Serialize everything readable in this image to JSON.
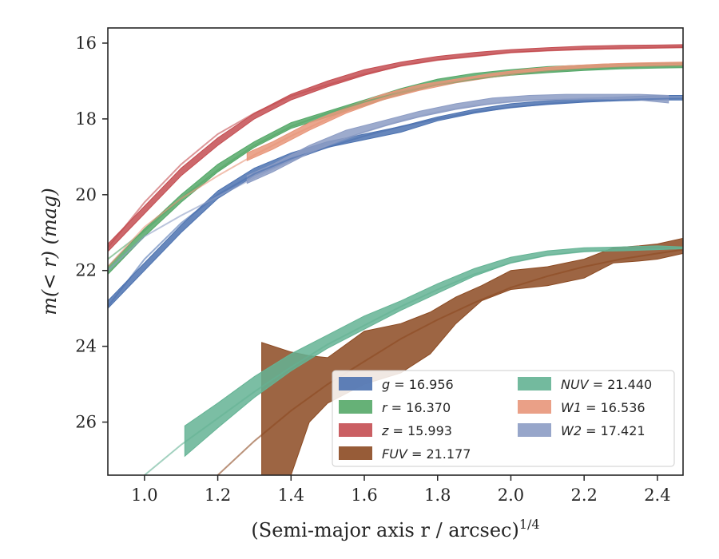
{
  "chart_data": {
    "type": "area",
    "xlabel": "(Semi-major axis r / arcsec)",
    "xlabel_superscript": "1/4",
    "ylabel": "m(< r) (mag)",
    "xlim": [
      0.9,
      2.47
    ],
    "ylim": [
      27.4,
      15.6
    ],
    "y_inverted": true,
    "grid": false,
    "legend_position": "lower-right",
    "x_ticks": [
      "1.0",
      "1.2",
      "1.4",
      "1.6",
      "1.8",
      "2.0",
      "2.2",
      "2.4"
    ],
    "y_ticks": [
      "16",
      "18",
      "20",
      "22",
      "24",
      "26"
    ],
    "series": [
      {
        "id": "g",
        "band": "g",
        "value": "16.956",
        "color": "#4c72b0",
        "data": [
          [
            0.9,
            23.0,
            22.8
          ],
          [
            1.0,
            22.0,
            21.8
          ],
          [
            1.1,
            21.0,
            20.8
          ],
          [
            1.2,
            20.1,
            19.9
          ],
          [
            1.3,
            19.5,
            19.3
          ],
          [
            1.4,
            19.1,
            18.9
          ],
          [
            1.5,
            18.75,
            18.6
          ],
          [
            1.6,
            18.55,
            18.4
          ],
          [
            1.7,
            18.35,
            18.2
          ],
          [
            1.8,
            18.05,
            17.95
          ],
          [
            1.9,
            17.85,
            17.75
          ],
          [
            2.0,
            17.7,
            17.6
          ],
          [
            2.1,
            17.62,
            17.52
          ],
          [
            2.2,
            17.56,
            17.46
          ],
          [
            2.3,
            17.52,
            17.42
          ],
          [
            2.4,
            17.5,
            17.38
          ],
          [
            2.47,
            17.5,
            17.38
          ]
        ]
      },
      {
        "id": "r",
        "band": "r",
        "value": "16.370",
        "color": "#55a868",
        "data": [
          [
            0.9,
            22.1,
            21.9
          ],
          [
            1.0,
            21.1,
            20.9
          ],
          [
            1.1,
            20.2,
            20.0
          ],
          [
            1.2,
            19.4,
            19.2
          ],
          [
            1.3,
            18.75,
            18.6
          ],
          [
            1.4,
            18.25,
            18.1
          ],
          [
            1.5,
            17.95,
            17.8
          ],
          [
            1.6,
            17.65,
            17.5
          ],
          [
            1.7,
            17.35,
            17.2
          ],
          [
            1.8,
            17.1,
            16.95
          ],
          [
            1.9,
            16.95,
            16.8
          ],
          [
            2.0,
            16.85,
            16.7
          ],
          [
            2.1,
            16.78,
            16.62
          ],
          [
            2.2,
            16.72,
            16.58
          ],
          [
            2.3,
            16.68,
            16.55
          ],
          [
            2.4,
            16.66,
            16.53
          ],
          [
            2.47,
            16.65,
            16.52
          ]
        ]
      },
      {
        "id": "z",
        "band": "z",
        "value": "15.993",
        "color": "#c44e52",
        "data": [
          [
            0.9,
            21.5,
            21.3
          ],
          [
            1.0,
            20.5,
            20.3
          ],
          [
            1.1,
            19.5,
            19.3
          ],
          [
            1.2,
            18.7,
            18.5
          ],
          [
            1.3,
            18.0,
            17.85
          ],
          [
            1.4,
            17.5,
            17.35
          ],
          [
            1.5,
            17.15,
            17.0
          ],
          [
            1.6,
            16.85,
            16.7
          ],
          [
            1.7,
            16.6,
            16.5
          ],
          [
            1.8,
            16.45,
            16.35
          ],
          [
            1.9,
            16.35,
            16.25
          ],
          [
            2.0,
            16.25,
            16.17
          ],
          [
            2.1,
            16.2,
            16.12
          ],
          [
            2.2,
            16.17,
            16.08
          ],
          [
            2.3,
            16.15,
            16.06
          ],
          [
            2.4,
            16.13,
            16.05
          ],
          [
            2.47,
            16.12,
            16.04
          ]
        ]
      },
      {
        "id": "FUV",
        "band": "FUV",
        "value": "21.177",
        "color": "#8c4a22",
        "data": [
          [
            1.32,
            27.4,
            23.9
          ],
          [
            1.4,
            27.4,
            24.15
          ],
          [
            1.45,
            26.0,
            24.25
          ],
          [
            1.5,
            25.5,
            24.3
          ],
          [
            1.6,
            25.0,
            23.6
          ],
          [
            1.7,
            24.7,
            23.4
          ],
          [
            1.78,
            24.2,
            23.1
          ],
          [
            1.85,
            23.4,
            22.7
          ],
          [
            1.92,
            22.8,
            22.4
          ],
          [
            2.0,
            22.5,
            22.0
          ],
          [
            2.1,
            22.4,
            21.9
          ],
          [
            2.2,
            22.2,
            21.7
          ],
          [
            2.28,
            21.8,
            21.4
          ],
          [
            2.35,
            21.75,
            21.35
          ],
          [
            2.4,
            21.7,
            21.3
          ],
          [
            2.47,
            21.55,
            21.15
          ]
        ]
      },
      {
        "id": "NUV",
        "band": "NUV",
        "value": "21.440",
        "color": "#64b394",
        "data": [
          [
            1.11,
            26.9,
            26.1
          ],
          [
            1.2,
            26.15,
            25.5
          ],
          [
            1.3,
            25.35,
            24.8
          ],
          [
            1.4,
            24.65,
            24.2
          ],
          [
            1.5,
            24.05,
            23.7
          ],
          [
            1.6,
            23.55,
            23.2
          ],
          [
            1.7,
            23.05,
            22.8
          ],
          [
            1.8,
            22.6,
            22.35
          ],
          [
            1.9,
            22.15,
            21.95
          ],
          [
            2.0,
            21.8,
            21.65
          ],
          [
            2.1,
            21.6,
            21.48
          ],
          [
            2.2,
            21.5,
            21.4
          ],
          [
            2.3,
            21.48,
            21.38
          ],
          [
            2.4,
            21.45,
            21.35
          ],
          [
            2.47,
            21.42,
            21.38
          ]
        ]
      },
      {
        "id": "W1",
        "band": "W1",
        "value": "16.536",
        "color": "#e8967a",
        "data": [
          [
            1.28,
            19.1,
            18.9
          ],
          [
            1.35,
            18.8,
            18.6
          ],
          [
            1.45,
            18.3,
            18.1
          ],
          [
            1.55,
            17.85,
            17.7
          ],
          [
            1.65,
            17.5,
            17.35
          ],
          [
            1.75,
            17.25,
            17.1
          ],
          [
            1.85,
            17.05,
            16.95
          ],
          [
            1.95,
            16.9,
            16.8
          ],
          [
            2.05,
            16.78,
            16.68
          ],
          [
            2.15,
            16.7,
            16.6
          ],
          [
            2.25,
            16.65,
            16.55
          ],
          [
            2.35,
            16.62,
            16.52
          ],
          [
            2.47,
            16.6,
            16.5
          ]
        ]
      },
      {
        "id": "W2",
        "band": "W2",
        "value": "17.421",
        "color": "#8c9cc4",
        "data": [
          [
            1.28,
            19.7,
            19.5
          ],
          [
            1.35,
            19.4,
            19.2
          ],
          [
            1.45,
            18.9,
            18.7
          ],
          [
            1.55,
            18.5,
            18.3
          ],
          [
            1.65,
            18.2,
            18.05
          ],
          [
            1.75,
            17.95,
            17.8
          ],
          [
            1.85,
            17.75,
            17.6
          ],
          [
            1.95,
            17.6,
            17.45
          ],
          [
            2.05,
            17.5,
            17.38
          ],
          [
            2.15,
            17.48,
            17.35
          ],
          [
            2.25,
            17.47,
            17.35
          ],
          [
            2.35,
            17.5,
            17.35
          ],
          [
            2.43,
            17.58,
            17.38
          ]
        ]
      }
    ],
    "model_lines": [
      {
        "id": "g",
        "color": "#4c72b0",
        "points": [
          [
            0.9,
            22.95
          ],
          [
            1.0,
            21.7
          ],
          [
            1.1,
            20.75
          ],
          [
            1.2,
            20.0
          ],
          [
            1.3,
            19.45
          ],
          [
            1.4,
            19.05
          ],
          [
            1.5,
            18.75
          ],
          [
            1.6,
            18.45
          ],
          [
            1.7,
            18.2
          ],
          [
            1.8,
            18.0
          ],
          [
            1.9,
            17.82
          ],
          [
            2.0,
            17.7
          ],
          [
            2.1,
            17.6
          ],
          [
            2.2,
            17.54
          ],
          [
            2.3,
            17.5
          ],
          [
            2.47,
            17.45
          ]
        ]
      },
      {
        "id": "r",
        "color": "#55a868",
        "points": [
          [
            0.9,
            21.7
          ],
          [
            1.0,
            20.95
          ],
          [
            1.1,
            20.1
          ],
          [
            1.2,
            19.35
          ],
          [
            1.3,
            18.7
          ],
          [
            1.4,
            18.2
          ],
          [
            1.5,
            17.85
          ],
          [
            1.6,
            17.55
          ],
          [
            1.7,
            17.3
          ],
          [
            1.8,
            17.1
          ],
          [
            1.9,
            16.95
          ],
          [
            2.0,
            16.82
          ],
          [
            2.1,
            16.74
          ],
          [
            2.2,
            16.68
          ],
          [
            2.3,
            16.64
          ],
          [
            2.47,
            16.6
          ]
        ]
      },
      {
        "id": "z",
        "color": "#c44e52",
        "points": [
          [
            0.9,
            21.4
          ],
          [
            1.0,
            20.2
          ],
          [
            1.1,
            19.2
          ],
          [
            1.2,
            18.4
          ],
          [
            1.3,
            17.85
          ],
          [
            1.4,
            17.4
          ],
          [
            1.5,
            17.1
          ],
          [
            1.6,
            16.82
          ],
          [
            1.7,
            16.6
          ],
          [
            1.8,
            16.45
          ],
          [
            1.9,
            16.35
          ],
          [
            2.0,
            16.25
          ],
          [
            2.1,
            16.2
          ],
          [
            2.2,
            16.16
          ],
          [
            2.3,
            16.14
          ],
          [
            2.47,
            16.1
          ]
        ]
      },
      {
        "id": "FUV",
        "color": "#8c4a22",
        "points": [
          [
            1.2,
            27.4
          ],
          [
            1.3,
            26.5
          ],
          [
            1.4,
            25.7
          ],
          [
            1.5,
            25.0
          ],
          [
            1.6,
            24.4
          ],
          [
            1.7,
            23.8
          ],
          [
            1.8,
            23.3
          ],
          [
            1.9,
            22.85
          ],
          [
            2.0,
            22.45
          ],
          [
            2.1,
            22.15
          ],
          [
            2.2,
            21.9
          ],
          [
            2.3,
            21.7
          ],
          [
            2.4,
            21.55
          ],
          [
            2.47,
            21.45
          ]
        ]
      },
      {
        "id": "NUV",
        "color": "#64b394",
        "points": [
          [
            1.0,
            27.4
          ],
          [
            1.1,
            26.6
          ],
          [
            1.2,
            25.9
          ],
          [
            1.3,
            25.2
          ],
          [
            1.4,
            24.55
          ],
          [
            1.5,
            23.95
          ],
          [
            1.6,
            23.45
          ],
          [
            1.7,
            22.95
          ],
          [
            1.8,
            22.5
          ],
          [
            1.9,
            22.1
          ],
          [
            2.0,
            21.8
          ],
          [
            2.1,
            21.6
          ],
          [
            2.2,
            21.5
          ],
          [
            2.3,
            21.45
          ],
          [
            2.47,
            21.42
          ]
        ]
      },
      {
        "id": "W1",
        "color": "#e8967a",
        "points": [
          [
            0.9,
            21.9
          ],
          [
            1.0,
            20.85
          ],
          [
            1.1,
            20.1
          ],
          [
            1.2,
            19.5
          ],
          [
            1.3,
            18.95
          ],
          [
            1.4,
            18.45
          ],
          [
            1.5,
            18.0
          ],
          [
            1.6,
            17.6
          ],
          [
            1.7,
            17.3
          ],
          [
            1.8,
            17.1
          ],
          [
            1.9,
            16.92
          ],
          [
            2.0,
            16.8
          ],
          [
            2.1,
            16.7
          ],
          [
            2.2,
            16.64
          ],
          [
            2.3,
            16.6
          ],
          [
            2.47,
            16.56
          ]
        ]
      },
      {
        "id": "W2",
        "color": "#8c9cc4",
        "points": [
          [
            0.9,
            22.0
          ],
          [
            1.0,
            21.1
          ],
          [
            1.1,
            20.55
          ],
          [
            1.2,
            20.05
          ],
          [
            1.3,
            19.55
          ],
          [
            1.4,
            19.1
          ],
          [
            1.5,
            18.7
          ],
          [
            1.6,
            18.35
          ],
          [
            1.7,
            18.05
          ],
          [
            1.8,
            17.82
          ],
          [
            1.9,
            17.65
          ],
          [
            2.0,
            17.55
          ],
          [
            2.1,
            17.5
          ],
          [
            2.2,
            17.46
          ],
          [
            2.3,
            17.44
          ],
          [
            2.47,
            17.42
          ]
        ]
      }
    ],
    "legend": [
      {
        "id": "g",
        "name": "g",
        "value": "16.956",
        "color": "#4c72b0"
      },
      {
        "id": "r",
        "name": "r",
        "value": "16.370",
        "color": "#55a868"
      },
      {
        "id": "z",
        "name": "z",
        "value": "15.993",
        "color": "#c44e52"
      },
      {
        "id": "FUV",
        "name": "FUV",
        "value": "21.177",
        "color": "#8c4a22"
      },
      {
        "id": "NUV",
        "name": "NUV",
        "value": "21.440",
        "color": "#64b394"
      },
      {
        "id": "W1",
        "name": "W1",
        "value": "16.536",
        "color": "#e8967a"
      },
      {
        "id": "W2",
        "name": "W2",
        "value": "17.421",
        "color": "#8c9cc4"
      }
    ]
  }
}
